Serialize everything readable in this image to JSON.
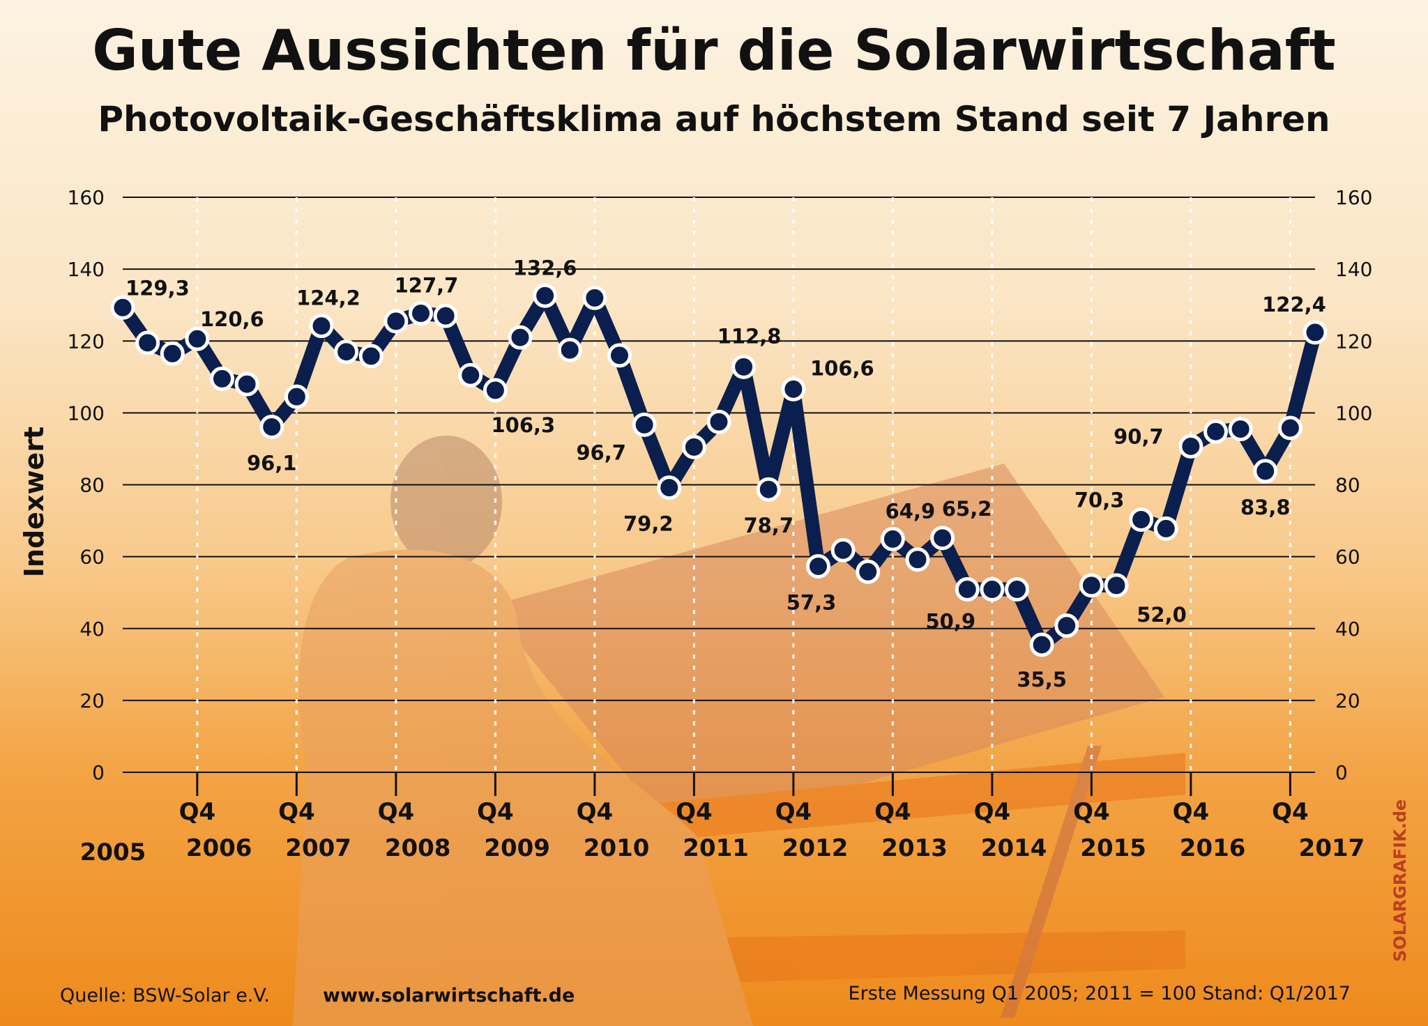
{
  "title": "Gute Aussichten für die Solarwirtschaft",
  "subtitle": "Photovoltaik-Geschäftsklima auf höchstem Stand seit 7 Jahren",
  "footer": {
    "source": "Quelle: BSW-Solar e.V.",
    "website": "www.solarwirtschaft.de",
    "note": "Erste Messung Q1 2005; 2011 = 100  Stand: Q1/2017"
  },
  "brand": "SOLARGRAFIK.de",
  "colors": {
    "line": "#0b1f4e",
    "grid": "#111111",
    "brand": "#b8401f"
  },
  "chart_data": {
    "type": "line",
    "title": "Gute Aussichten für die Solarwirtschaft",
    "subtitle": "Photovoltaik-Geschäftsklima auf höchstem Stand seit 7 Jahren",
    "ylabel": "Indexwert",
    "xlabel": "",
    "ylim": [
      0,
      160
    ],
    "yticks": [
      0,
      20,
      40,
      60,
      80,
      100,
      120,
      140,
      160
    ],
    "quarter_label": "Q4",
    "year_labels": [
      "2005",
      "2006",
      "2007",
      "2008",
      "2009",
      "2010",
      "2011",
      "2012",
      "2013",
      "2014",
      "2015",
      "2016",
      "2017"
    ],
    "grid": true,
    "series": [
      {
        "name": "Photovoltaik-Geschäftsklima",
        "x": [
          "Q1 2005",
          "Q2 2005",
          "Q3 2005",
          "Q4 2005",
          "Q1 2006",
          "Q2 2006",
          "Q3 2006",
          "Q4 2006",
          "Q1 2007",
          "Q2 2007",
          "Q3 2007",
          "Q4 2007",
          "Q1 2008",
          "Q2 2008",
          "Q3 2008",
          "Q4 2008",
          "Q1 2009",
          "Q2 2009",
          "Q3 2009",
          "Q4 2009",
          "Q1 2010",
          "Q2 2010",
          "Q3 2010",
          "Q4 2010",
          "Q1 2011",
          "Q2 2011",
          "Q3 2011",
          "Q4 2011",
          "Q1 2012",
          "Q2 2012",
          "Q3 2012",
          "Q4 2012",
          "Q1 2013",
          "Q2 2013",
          "Q3 2013",
          "Q4 2013",
          "Q1 2014",
          "Q2 2014",
          "Q3 2014",
          "Q4 2014",
          "Q1 2015",
          "Q2 2015",
          "Q3 2015",
          "Q4 2015",
          "Q1 2016",
          "Q2 2016",
          "Q3 2016",
          "Q4 2016",
          "Q1 2017"
        ],
        "values": [
          129.3,
          119.5,
          116.5,
          120.6,
          109.5,
          108.0,
          96.1,
          104.5,
          124.2,
          117.0,
          115.8,
          125.5,
          127.7,
          127.0,
          110.5,
          106.3,
          121.0,
          132.6,
          117.5,
          132.0,
          116.0,
          96.7,
          79.2,
          90.5,
          97.5,
          112.8,
          78.7,
          106.6,
          57.3,
          61.8,
          55.8,
          64.9,
          59.2,
          65.2,
          50.9,
          50.9,
          50.9,
          35.5,
          40.8,
          52.0,
          52.0,
          70.3,
          67.8,
          90.7,
          94.8,
          95.5,
          83.8,
          95.8,
          122.4
        ]
      }
    ],
    "data_labels": [
      {
        "index": 0,
        "text": "129,3"
      },
      {
        "index": 3,
        "text": "120,6"
      },
      {
        "index": 6,
        "text": "96,1"
      },
      {
        "index": 8,
        "text": "124,2"
      },
      {
        "index": 12,
        "text": "127,7"
      },
      {
        "index": 15,
        "text": "106,3"
      },
      {
        "index": 17,
        "text": "132,6"
      },
      {
        "index": 21,
        "text": "96,7"
      },
      {
        "index": 22,
        "text": "79,2"
      },
      {
        "index": 25,
        "text": "112,8"
      },
      {
        "index": 26,
        "text": "78,7"
      },
      {
        "index": 27,
        "text": "106,6"
      },
      {
        "index": 28,
        "text": "57,3"
      },
      {
        "index": 31,
        "text": "64,9"
      },
      {
        "index": 33,
        "text": "65,2"
      },
      {
        "index": 34,
        "text": "50,9"
      },
      {
        "index": 37,
        "text": "35,5"
      },
      {
        "index": 40,
        "text": "52,0"
      },
      {
        "index": 41,
        "text": "70,3"
      },
      {
        "index": 43,
        "text": "90,7"
      },
      {
        "index": 46,
        "text": "83,8"
      },
      {
        "index": 48,
        "text": "122,4"
      }
    ]
  }
}
